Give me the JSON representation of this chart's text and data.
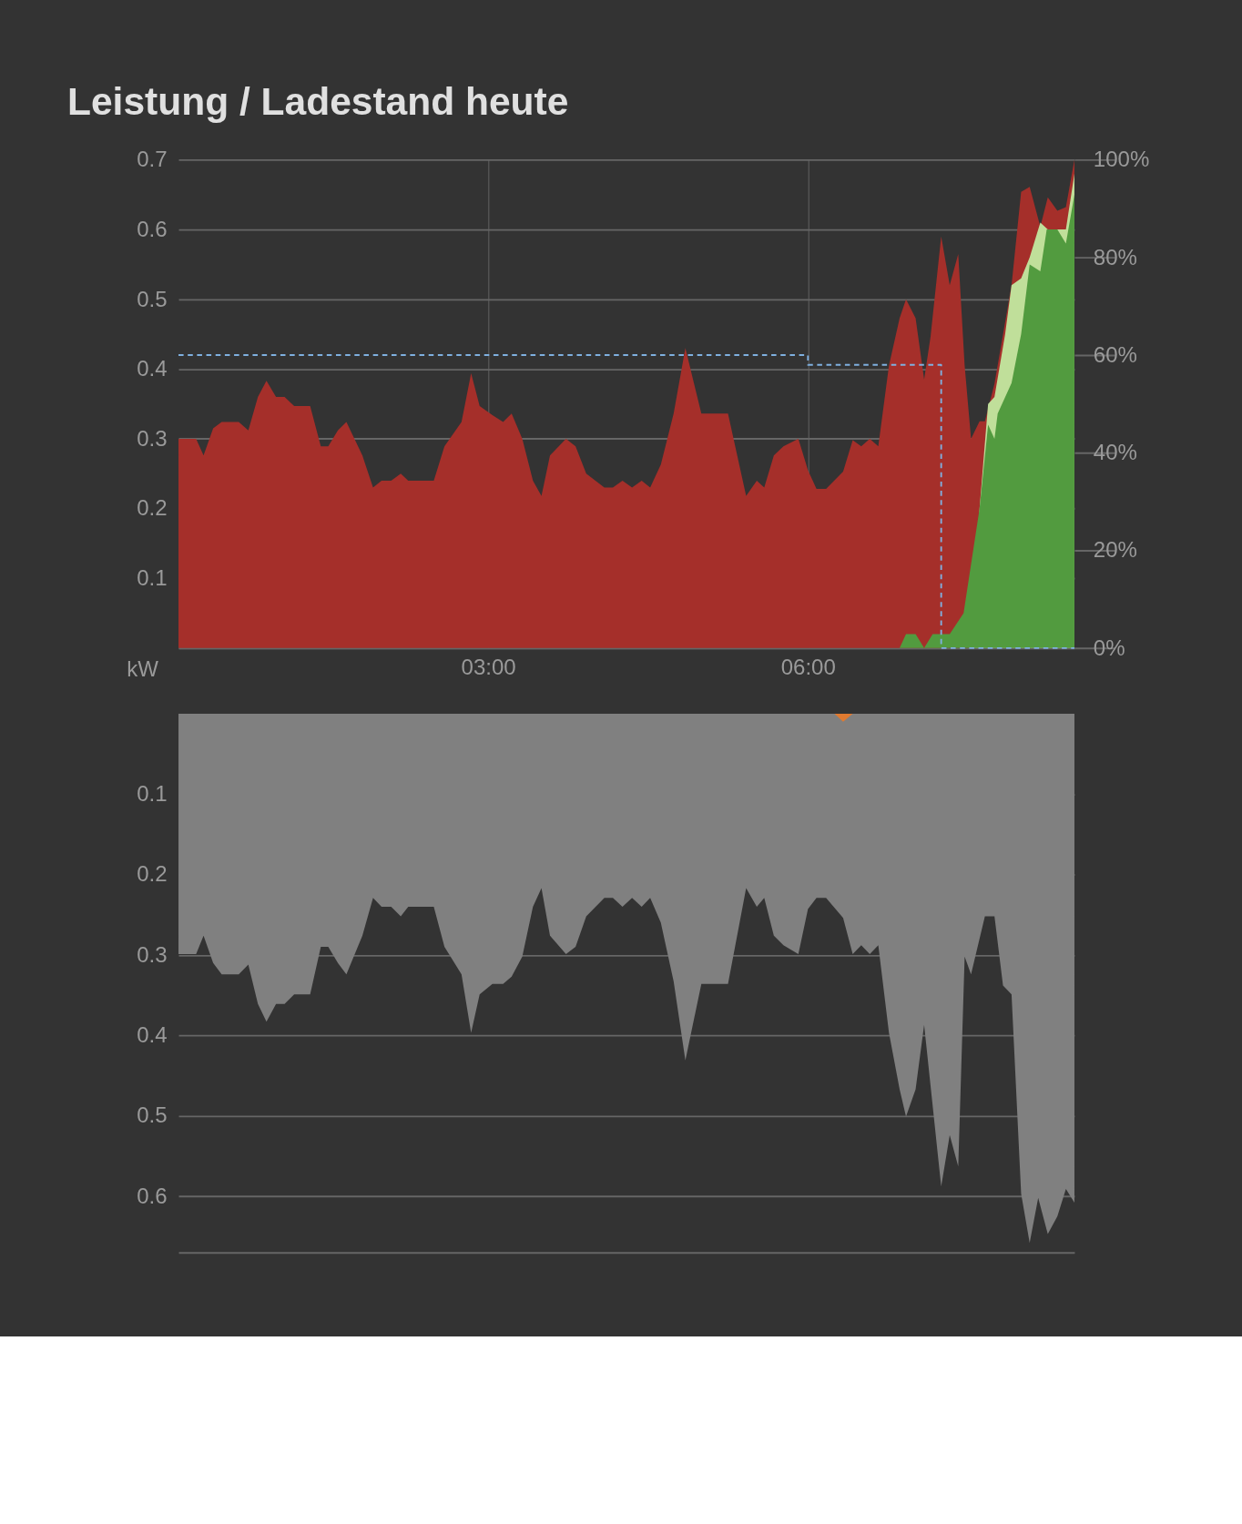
{
  "chart_data": [
    {
      "type": "area",
      "title": "Leistung / Ladestand heute",
      "ylabel": "kW",
      "grid": true,
      "xlim": [
        0.095,
        8.5
      ],
      "xticks": [
        {
          "value": 3,
          "label": "03:00"
        },
        {
          "value": 6,
          "label": "06:00"
        }
      ],
      "ylim": [
        0,
        0.7
      ],
      "yticks": [
        {
          "value": 0,
          "label": null
        },
        0.1,
        0.2,
        0.3,
        0.4,
        0.5,
        0.6,
        0.7
      ],
      "y2lim": [
        0,
        100
      ],
      "y2ticks": [
        {
          "value": 0,
          "label": "0%"
        },
        {
          "value": 20,
          "label": "20%"
        },
        {
          "value": 40,
          "label": "40%"
        },
        {
          "value": 60,
          "label": "60%"
        },
        {
          "value": 80,
          "label": "80%"
        },
        {
          "value": 100,
          "label": "100%"
        }
      ],
      "series": [
        {
          "color": "#a52f2a",
          "x": [
            0.095,
            0.26,
            0.33,
            0.42,
            0.5,
            0.66,
            0.75,
            0.84,
            0.92,
            1.01,
            1.09,
            1.18,
            1.33,
            1.43,
            1.5,
            1.59,
            1.67,
            1.82,
            1.92,
            2.0,
            2.09,
            2.18,
            2.25,
            2.49,
            2.59,
            2.75,
            2.84,
            2.92,
            3.04,
            3.14,
            3.22,
            3.32,
            3.42,
            3.5,
            3.58,
            3.73,
            3.82,
            3.92,
            4.09,
            4.17,
            4.26,
            4.35,
            4.44,
            4.52,
            4.62,
            4.74,
            4.85,
            5.0,
            5.25,
            5.42,
            5.52,
            5.59,
            5.68,
            5.77,
            5.91,
            6.0,
            6.08,
            6.17,
            6.33,
            6.42,
            6.5,
            6.58,
            6.66,
            6.76,
            6.86,
            6.92,
            7.01,
            7.09,
            7.15,
            7.25,
            7.33,
            7.41,
            7.47,
            7.53,
            7.61,
            7.66,
            7.75,
            7.91,
            8.0,
            8.08,
            8.18,
            8.25,
            8.34,
            8.42,
            8.5
          ],
          "values": [
            0.3,
            0.3,
            0.276,
            0.315,
            0.324,
            0.324,
            0.312,
            0.36,
            0.383,
            0.36,
            0.36,
            0.347,
            0.347,
            0.289,
            0.289,
            0.312,
            0.324,
            0.276,
            0.23,
            0.24,
            0.24,
            0.25,
            0.24,
            0.24,
            0.289,
            0.324,
            0.394,
            0.347,
            0.334,
            0.324,
            0.336,
            0.3,
            0.24,
            0.218,
            0.276,
            0.3,
            0.289,
            0.25,
            0.23,
            0.23,
            0.24,
            0.23,
            0.24,
            0.23,
            0.263,
            0.336,
            0.43,
            0.336,
            0.336,
            0.218,
            0.24,
            0.23,
            0.276,
            0.289,
            0.3,
            0.255,
            0.228,
            0.228,
            0.253,
            0.298,
            0.289,
            0.3,
            0.289,
            0.405,
            0.473,
            0.5,
            0.473,
            0.385,
            0.446,
            0.59,
            0.52,
            0.565,
            0.405,
            0.3,
            0.325,
            0.325,
            0.379,
            0.52,
            0.654,
            0.661,
            0.604,
            0.646,
            0.627,
            0.632,
            0.7
          ]
        },
        {
          "color": "#c0df9a",
          "x": [
            7.53,
            7.61,
            7.69,
            7.75,
            7.85,
            7.91,
            8.0,
            8.08,
            8.18,
            8.25,
            8.34,
            8.42,
            8.5
          ],
          "values": [
            0.0,
            0.2,
            0.35,
            0.36,
            0.45,
            0.52,
            0.53,
            0.56,
            0.61,
            0.6,
            0.6,
            0.6,
            0.68
          ]
        },
        {
          "color": "#529b3f",
          "x": [
            6.86,
            6.92,
            7.01,
            7.09,
            7.17,
            7.33,
            7.46,
            7.61,
            7.69,
            7.75,
            7.78,
            7.91,
            8.0,
            8.08,
            8.18,
            8.24,
            8.34,
            8.42,
            8.5
          ],
          "values": [
            0,
            0.02,
            0.02,
            0,
            0.02,
            0.02,
            0.05,
            0.2,
            0.32,
            0.3,
            0.336,
            0.38,
            0.45,
            0.55,
            0.54,
            0.6,
            0.6,
            0.58,
            0.65
          ]
        },
        {
          "type": "step",
          "axis": "y2",
          "color": "#7fb0e0",
          "line_style": "dashed",
          "x": [
            0.095,
            6.0,
            7.25,
            8.5
          ],
          "values": [
            60,
            58,
            0,
            0
          ]
        }
      ]
    },
    {
      "type": "area",
      "grid": "y",
      "tick_labels": "y",
      "xlim": [
        0.095,
        8.5
      ],
      "ylim": [
        0.67,
        0
      ],
      "yticks": [
        0.1,
        0.2,
        0.3,
        0.4,
        0.5,
        0.6
      ],
      "series": [
        {
          "color": "#808080",
          "x": [
            0.095,
            0.26,
            0.33,
            0.42,
            0.5,
            0.66,
            0.75,
            0.84,
            0.92,
            1.01,
            1.09,
            1.18,
            1.33,
            1.43,
            1.5,
            1.59,
            1.67,
            1.82,
            1.92,
            2.0,
            2.09,
            2.18,
            2.25,
            2.49,
            2.59,
            2.75,
            2.84,
            2.92,
            3.04,
            3.14,
            3.22,
            3.32,
            3.42,
            3.5,
            3.58,
            3.73,
            3.82,
            3.92,
            4.09,
            4.17,
            4.26,
            4.35,
            4.44,
            4.52,
            4.62,
            4.74,
            4.85,
            5.0,
            5.25,
            5.42,
            5.52,
            5.59,
            5.68,
            5.77,
            5.91,
            6.0,
            6.08,
            6.17,
            6.33,
            6.42,
            6.5,
            6.58,
            6.66,
            6.76,
            6.86,
            6.92,
            7.01,
            7.09,
            7.25,
            7.33,
            7.41,
            7.47,
            7.53,
            7.66,
            7.75,
            7.83,
            7.91,
            8.0,
            8.08,
            8.16,
            8.25,
            8.34,
            8.42,
            8.5
          ],
          "values": [
            0.299,
            0.299,
            0.276,
            0.31,
            0.324,
            0.324,
            0.312,
            0.361,
            0.383,
            0.361,
            0.361,
            0.349,
            0.349,
            0.29,
            0.29,
            0.31,
            0.324,
            0.276,
            0.229,
            0.24,
            0.24,
            0.252,
            0.24,
            0.24,
            0.29,
            0.324,
            0.397,
            0.349,
            0.336,
            0.336,
            0.327,
            0.302,
            0.24,
            0.217,
            0.276,
            0.299,
            0.29,
            0.252,
            0.229,
            0.229,
            0.24,
            0.229,
            0.24,
            0.229,
            0.26,
            0.333,
            0.431,
            0.336,
            0.336,
            0.217,
            0.24,
            0.229,
            0.276,
            0.288,
            0.299,
            0.243,
            0.229,
            0.229,
            0.254,
            0.299,
            0.288,
            0.299,
            0.288,
            0.397,
            0.467,
            0.501,
            0.467,
            0.387,
            0.588,
            0.524,
            0.563,
            0.302,
            0.324,
            0.252,
            0.252,
            0.338,
            0.349,
            0.597,
            0.658,
            0.602,
            0.647,
            0.625,
            0.591,
            0.608
          ]
        },
        {
          "color": "#e07a30",
          "x": [
            6.25,
            6.33,
            6.42
          ],
          "values": [
            0,
            0.01,
            0
          ]
        }
      ]
    }
  ]
}
